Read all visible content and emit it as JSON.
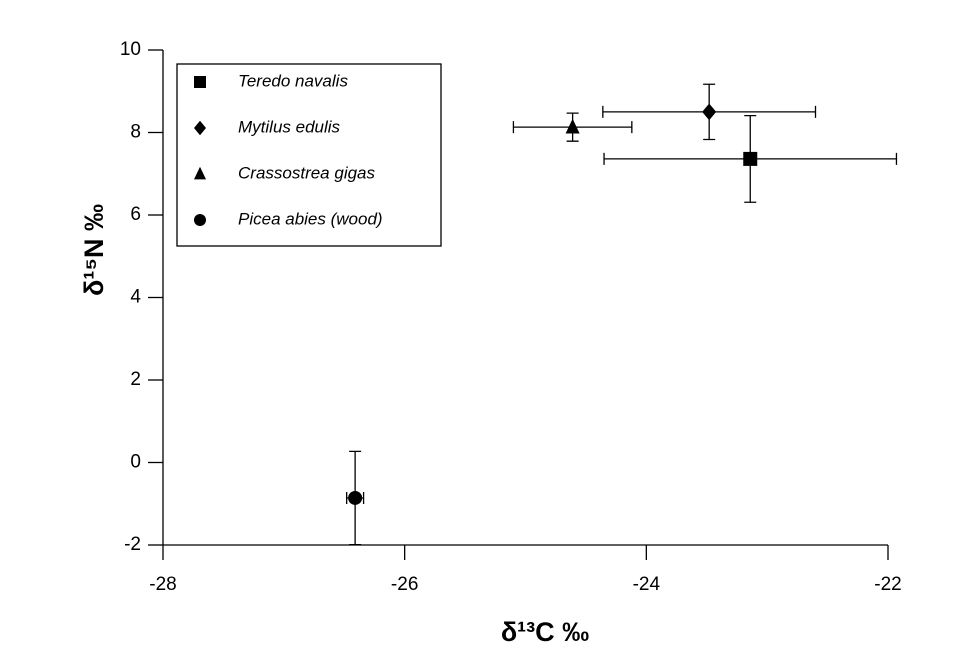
{
  "chart_data": {
    "type": "scatter",
    "x_label": "δ¹³C ‰",
    "y_label": "δ¹⁵N ‰",
    "xlim": [
      -28,
      -22
    ],
    "xticks": [
      -28,
      -26,
      -24,
      -22
    ],
    "ylim": [
      -2,
      10
    ],
    "yticks": [
      -2,
      0,
      2,
      4,
      6,
      8,
      10
    ],
    "legend": "upper left",
    "series": [
      {
        "name": "Teredo navalis",
        "marker": "square",
        "color": "#000000",
        "x": [
          -23.14
        ],
        "y": [
          7.36
        ],
        "xerr": [
          1.21
        ],
        "yerr": [
          1.05
        ]
      },
      {
        "name": "Mytilus edulis",
        "marker": "diamond",
        "color": "#000000",
        "x": [
          -23.48
        ],
        "y": [
          8.5
        ],
        "xerr": [
          0.88
        ],
        "yerr": [
          0.67
        ]
      },
      {
        "name": "Crassostrea gigas",
        "marker": "triangle",
        "color": "#000000",
        "x": [
          -24.61
        ],
        "y": [
          8.13
        ],
        "xerr": [
          0.49
        ],
        "yerr": [
          0.34
        ]
      },
      {
        "name": "Picea abies (wood)",
        "marker": "circle",
        "color": "#000000",
        "x": [
          -26.41
        ],
        "y": [
          -0.86
        ],
        "xerr": [
          0.07
        ],
        "yerr": [
          1.13
        ]
      }
    ]
  }
}
